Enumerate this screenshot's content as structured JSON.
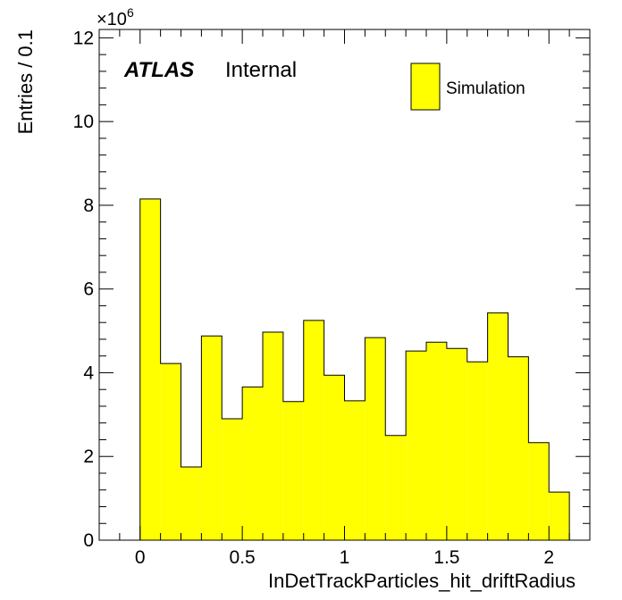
{
  "chart_data": {
    "type": "bar",
    "histogram": true,
    "bin_width": 0.1,
    "bin_edges_start": 0.0,
    "values": [
      8.15,
      4.22,
      1.75,
      4.88,
      2.9,
      3.66,
      4.97,
      3.31,
      5.25,
      3.94,
      3.33,
      4.84,
      2.5,
      4.52,
      4.73,
      4.58,
      4.26,
      5.43,
      4.38,
      2.33,
      1.15
    ],
    "value_multiplier": "×10",
    "value_multiplier_exp": "6",
    "xlabel": "InDetTrackParticles_hit_driftRadius",
    "ylabel": "Entries / 0.1",
    "xlim": [
      -0.2,
      2.2
    ],
    "ylim": [
      0,
      12.2
    ],
    "x_ticks": [
      0,
      0.5,
      1,
      1.5,
      2
    ],
    "x_tick_labels": [
      "0",
      "0.5",
      "1",
      "1.5",
      "2"
    ],
    "y_ticks": [
      0,
      2,
      4,
      6,
      8,
      10,
      12
    ],
    "y_tick_labels": [
      "0",
      "2",
      "4",
      "6",
      "8",
      "10",
      "12"
    ],
    "series": [
      {
        "name": "Simulation",
        "color": "#ffff00",
        "edge_color": "#000000"
      }
    ],
    "legend_position": "top-right",
    "grid": false,
    "label_bold": "ATLAS",
    "label_plain": "Internal"
  }
}
